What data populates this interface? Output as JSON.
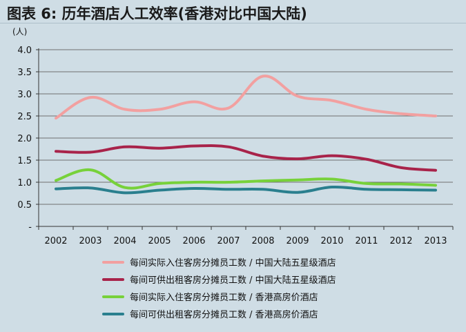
{
  "header": {
    "title": "图表 6: 历年酒店人工效率(香港对比中国大陆)"
  },
  "colors": {
    "background": "#cfdde5",
    "grid": "#6f6f6f"
  },
  "chart_data": {
    "type": "line",
    "title": "图表 6: 历年酒店人工效率(香港对比中国大陆)",
    "ylabel": "(人)",
    "xlabel": "",
    "x": [
      "2002",
      "2003",
      "2004",
      "2005",
      "2006",
      "2007",
      "2008",
      "2009",
      "2010",
      "2011",
      "2012",
      "2013"
    ],
    "ylim": [
      0,
      4.0
    ],
    "yticks": [
      0,
      0.5,
      1.0,
      1.5,
      2.0,
      2.5,
      3.0,
      3.5,
      4.0
    ],
    "ytick_labels": [
      "-",
      "0.5",
      "1.0",
      "1.5",
      "2.0",
      "2.5",
      "3.0",
      "3.5",
      "4.0"
    ],
    "grid": true,
    "legend_position": "bottom",
    "series": [
      {
        "name": "每间实际入住客房分摊员工数 / 中国大陆五星级酒店",
        "color": "#f2a0a0",
        "values": [
          2.45,
          2.92,
          2.65,
          2.65,
          2.82,
          2.68,
          3.4,
          2.95,
          2.85,
          2.65,
          2.55,
          2.5
        ]
      },
      {
        "name": "每间可供出租客房分摊员工数 / 中国大陆五星级酒店",
        "color": "#a8234a",
        "values": [
          1.7,
          1.68,
          1.8,
          1.77,
          1.82,
          1.8,
          1.59,
          1.53,
          1.6,
          1.52,
          1.33,
          1.27
        ]
      },
      {
        "name": "每间实际入住客房分摊员工数 / 香港高房价酒店",
        "color": "#77d13a",
        "values": [
          1.04,
          1.28,
          0.88,
          0.97,
          1.0,
          1.0,
          1.03,
          1.05,
          1.07,
          0.97,
          0.96,
          0.93
        ]
      },
      {
        "name": "每间可供出租客房分摊员工数 / 香港高房价酒店",
        "color": "#2a7f8e",
        "values": [
          0.85,
          0.87,
          0.76,
          0.82,
          0.86,
          0.84,
          0.84,
          0.77,
          0.89,
          0.84,
          0.83,
          0.82
        ]
      }
    ]
  }
}
